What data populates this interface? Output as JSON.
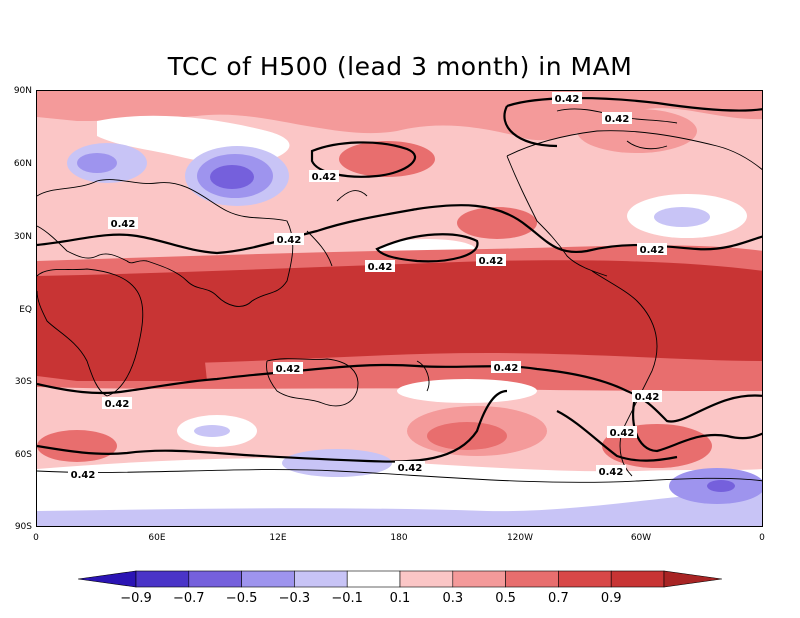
{
  "title": "TCC of H500 (lead 3 month) in MAM",
  "latitude_labels": [
    "90N",
    "60N",
    "30N",
    "EQ",
    "30S",
    "60S",
    "90S"
  ],
  "longitude_labels": [
    "0",
    "60E",
    "12E",
    "180",
    "120W",
    "60W",
    "0"
  ],
  "contour_label": "0.42",
  "colorbar": {
    "labels": [
      "-0.9",
      "-0.7",
      "-0.5",
      "-0.3",
      "-0.1",
      "0.1",
      "0.3",
      "0.5",
      "0.7",
      "0.9"
    ],
    "colors": [
      "#2b14b4",
      "#4a34c8",
      "#7560dc",
      "#9e94ee",
      "#c8c4f6",
      "#ffffff",
      "#fbc6c6",
      "#f49a9a",
      "#e86e6e",
      "#d84848",
      "#c83434",
      "#a82424"
    ]
  },
  "chart_data": {
    "type": "heatmap",
    "title": "TCC of H500 (lead 3 month) in MAM",
    "x_ticks": [
      "0",
      "60E",
      "12E",
      "180",
      "120W",
      "60W",
      "0"
    ],
    "y_ticks": [
      "90N",
      "60N",
      "30N",
      "EQ",
      "30S",
      "60S",
      "90S"
    ],
    "x_range_degrees_east": [
      0,
      360
    ],
    "y_range_degrees_north": [
      -90,
      90
    ],
    "contour_level": 0.42,
    "contour_levels_shaded": [
      -0.9,
      -0.7,
      -0.5,
      -0.3,
      -0.1,
      0.1,
      0.3,
      0.5,
      0.7,
      0.9
    ],
    "legend": "bottom"
  }
}
